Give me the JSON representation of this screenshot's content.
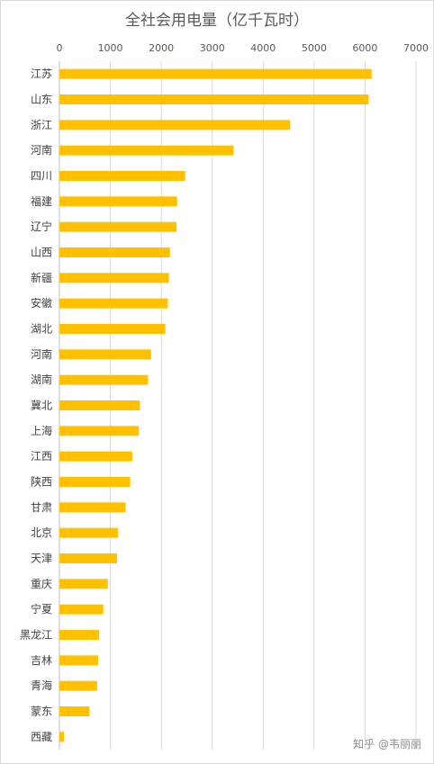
{
  "chart_data": {
    "type": "bar",
    "orientation": "horizontal",
    "title": "全社会用电量（亿千瓦时）",
    "xlabel": "",
    "ylabel": "",
    "xlim": [
      0,
      7000
    ],
    "xticks": [
      "0",
      "1000",
      "2000",
      "3000",
      "4000",
      "5000",
      "6000",
      "7000"
    ],
    "categories": [
      "江苏",
      "山东",
      "浙江",
      "河南",
      "四川",
      "福建",
      "辽宁",
      "山西",
      "新疆",
      "安徽",
      "湖北",
      "河南",
      "湖南",
      "冀北",
      "上海",
      "江西",
      "陕西",
      "甘肃",
      "北京",
      "天津",
      "重庆",
      "宁夏",
      "黑龙江",
      "吉林",
      "青海",
      "蒙东",
      "西藏"
    ],
    "values": [
      6130,
      6070,
      4530,
      3420,
      2470,
      2310,
      2300,
      2170,
      2150,
      2130,
      2080,
      1800,
      1740,
      1580,
      1560,
      1430,
      1390,
      1300,
      1150,
      1130,
      950,
      860,
      780,
      760,
      740,
      590,
      90
    ],
    "bar_color": "#FFC000",
    "grid": true,
    "axis_position": "top"
  },
  "watermark": "知乎 @韦丽丽"
}
